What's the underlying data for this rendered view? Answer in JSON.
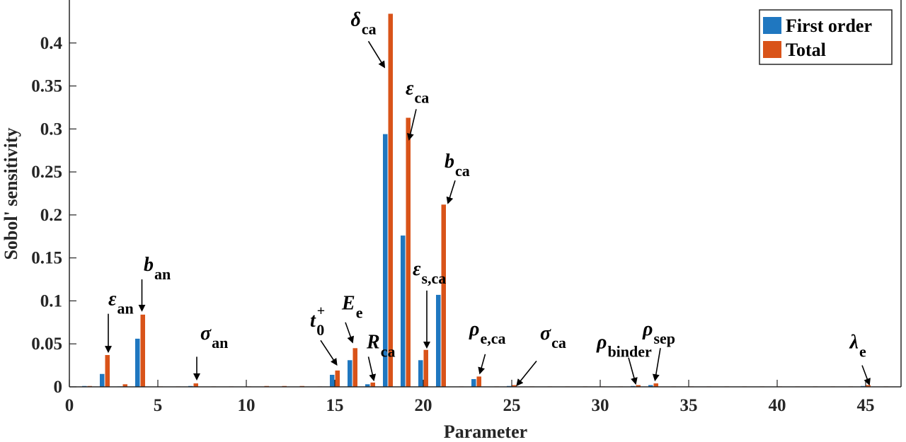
{
  "chart_data": {
    "type": "bar",
    "xlabel": "Parameter",
    "ylabel": "Sobol' sensitivity",
    "xlim": [
      0,
      47
    ],
    "ylim": [
      0,
      0.45
    ],
    "xticks": [
      0,
      5,
      10,
      15,
      20,
      25,
      30,
      35,
      40,
      45
    ],
    "xtick_labels": [
      "0",
      "5",
      "10",
      "15",
      "20",
      "25",
      "30",
      "35",
      "40",
      "45"
    ],
    "yticks": [
      0,
      0.05,
      0.1,
      0.15,
      0.2,
      0.25,
      0.3,
      0.35,
      0.4
    ],
    "ytick_labels": [
      "0",
      "0.05",
      "0.1",
      "0.15",
      "0.2",
      "0.25",
      "0.3",
      "0.35",
      "0.4"
    ],
    "grid": false,
    "legend_position": "top-right",
    "categories": [
      1,
      2,
      3,
      4,
      5,
      6,
      7,
      8,
      9,
      10,
      11,
      12,
      13,
      14,
      15,
      16,
      17,
      18,
      19,
      20,
      21,
      22,
      23,
      24,
      25,
      26,
      27,
      28,
      29,
      30,
      31,
      32,
      33,
      34,
      35,
      36,
      37,
      38,
      39,
      40,
      41,
      42,
      43,
      44,
      45,
      46
    ],
    "series": [
      {
        "name": "First order",
        "color": "#1f77c0",
        "values": [
          0.001,
          0.015,
          0.0005,
          0.056,
          0,
          0,
          0.001,
          0,
          0,
          0,
          0,
          0,
          0,
          0,
          0.014,
          0.031,
          0.003,
          0.294,
          0.176,
          0.031,
          0.107,
          0,
          0.009,
          0,
          0.001,
          0,
          0,
          0,
          0,
          0,
          0,
          0.001,
          0.002,
          0,
          0,
          0,
          0,
          0,
          0,
          0,
          0,
          0,
          0,
          0,
          0.001,
          0
        ]
      },
      {
        "name": "Total",
        "color": "#d95319",
        "values": [
          0.001,
          0.037,
          0.003,
          0.084,
          0.0005,
          0.0005,
          0.004,
          0.0005,
          0.0005,
          0.0005,
          0.001,
          0.001,
          0.001,
          0.0005,
          0.019,
          0.045,
          0.005,
          0.434,
          0.313,
          0.043,
          0.212,
          0.0005,
          0.012,
          0.0005,
          0.002,
          0.0005,
          0.0005,
          0.0005,
          0.0005,
          0.0005,
          0.0005,
          0.002,
          0.004,
          0.0005,
          0.0005,
          0.0005,
          0.0005,
          0.0005,
          0.0005,
          0.0005,
          0.0005,
          0.0005,
          0.0005,
          0.0005,
          0.002,
          0.0005
        ]
      }
    ],
    "annotations": [
      {
        "base": "ε",
        "sub": "an",
        "tx": 2.2,
        "ty": 0.095,
        "ax0": 2.2,
        "ay0": 0.085,
        "ax1": 2.2,
        "ay1": 0.041
      },
      {
        "base": "b",
        "sub": "an",
        "tx": 4.2,
        "ty": 0.135,
        "ax0": 4.1,
        "ay0": 0.125,
        "ax1": 4.1,
        "ay1": 0.089
      },
      {
        "base": "σ",
        "sub": "an",
        "tx": 7.4,
        "ty": 0.055,
        "ax0": 7.2,
        "ay0": 0.035,
        "ax1": 7.2,
        "ay1": 0.009
      },
      {
        "base": "t",
        "sub": "0",
        "sup": "+",
        "tx": 13.6,
        "ty": 0.07,
        "ax0": 14.2,
        "ay0": 0.054,
        "ax1": 15.1,
        "ay1": 0.026
      },
      {
        "base": "E",
        "sub": "e",
        "tx": 15.4,
        "ty": 0.09,
        "ax0": 15.6,
        "ay0": 0.075,
        "ax1": 16.0,
        "ay1": 0.052
      },
      {
        "base": "R",
        "sub": "ca",
        "tx": 16.8,
        "ty": 0.045,
        "ax0": 16.9,
        "ay0": 0.035,
        "ax1": 17.2,
        "ay1": 0.008
      },
      {
        "base": "δ",
        "sub": "ca",
        "tx": 15.9,
        "ty": 0.42,
        "ax0": 16.9,
        "ay0": 0.402,
        "ax1": 17.8,
        "ay1": 0.372
      },
      {
        "base": "ε",
        "sub": "ca",
        "tx": 19.0,
        "ty": 0.34,
        "ax0": 19.6,
        "ay0": 0.323,
        "ax1": 19.2,
        "ay1": 0.288
      },
      {
        "base": "b",
        "sub": "ca",
        "tx": 21.2,
        "ty": 0.255,
        "ax0": 21.8,
        "ay0": 0.24,
        "ax1": 21.4,
        "ay1": 0.214
      },
      {
        "base": "ε",
        "sub": "s,ca",
        "tx": 19.4,
        "ty": 0.13,
        "ax0": 20.2,
        "ay0": 0.112,
        "ax1": 20.2,
        "ay1": 0.046
      },
      {
        "base": "ρ",
        "sub": "e,ca",
        "tx": 22.6,
        "ty": 0.06,
        "ax0": 23.5,
        "ay0": 0.038,
        "ax1": 23.2,
        "ay1": 0.016
      },
      {
        "base": "σ",
        "sub": "ca",
        "tx": 26.6,
        "ty": 0.055,
        "ax0": 26.4,
        "ay0": 0.03,
        "ax1": 25.3,
        "ay1": 0.002
      },
      {
        "base": "ρ",
        "sub": "binder",
        "tx": 29.8,
        "ty": 0.045,
        "ax0": 31.6,
        "ay0": 0.034,
        "ax1": 32.0,
        "ay1": 0.004
      },
      {
        "base": "ρ",
        "sub": "sep",
        "tx": 32.4,
        "ty": 0.06,
        "ax0": 33.4,
        "ay0": 0.045,
        "ax1": 33.1,
        "ay1": 0.008
      },
      {
        "base": "λ",
        "sub": "e",
        "tx": 44.1,
        "ty": 0.045,
        "ax0": 44.8,
        "ay0": 0.025,
        "ax1": 45.2,
        "ay1": 0.003
      }
    ]
  }
}
